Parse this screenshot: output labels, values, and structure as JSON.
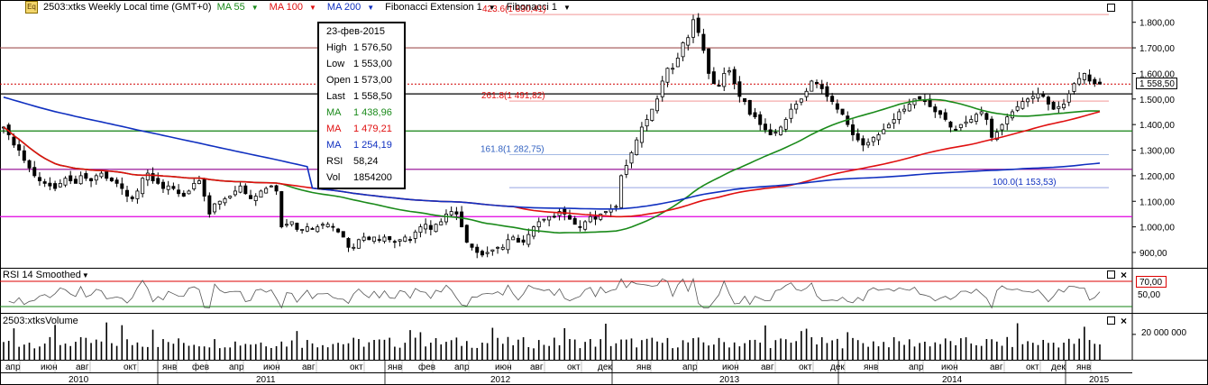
{
  "header": {
    "instrument": "2503:xtks Weekly Local time (GMT+0)",
    "ma55": "MA 55",
    "ma100": "MA 100",
    "ma200": "MA 200",
    "fib_ext": "Fibonacci Extension 1",
    "fib": "Fibonacci 1",
    "colors": {
      "ma55": "#1a8a1a",
      "ma100": "#e01010",
      "ma200": "#1030c0"
    }
  },
  "tooltip": {
    "date": "23-фев-2015",
    "rows": [
      {
        "label": "High",
        "value": "1 576,50",
        "color": "#000000"
      },
      {
        "label": "Low",
        "value": "1 553,00",
        "color": "#000000"
      },
      {
        "label": "Open",
        "value": "1 573,00",
        "color": "#000000"
      },
      {
        "label": "Last",
        "value": "1 558,50",
        "color": "#000000"
      },
      {
        "label": "MA",
        "value": "1 438,96",
        "color": "#1a8a1a"
      },
      {
        "label": "MA",
        "value": "1 479,21",
        "color": "#e01010"
      },
      {
        "label": "MA",
        "value": "1 254,19",
        "color": "#1030c0"
      },
      {
        "label": "RSI",
        "value": "58,24",
        "color": "#000000"
      },
      {
        "label": "Vol",
        "value": "1854200",
        "color": "#000000"
      }
    ]
  },
  "panels": {
    "rsi_title": "RSI 14 Smoothed",
    "rsi_level": "70,00",
    "rsi_level2": "50,00",
    "vol_title": "2503:xtksVolume",
    "vol_label": "20 000 000"
  },
  "last_price_tag": "1 558,50",
  "fib_labels": [
    {
      "text": "423.6(1 830,41)",
      "price": 1830.41,
      "color": "#e01010"
    },
    {
      "text": "261.8(1 491,82)",
      "price": 1491.82,
      "color": "#e01010"
    },
    {
      "text": "161.8(1 282,75)",
      "price": 1282.75,
      "color": "#3060c0"
    },
    {
      "text": "100.0(1 153,53)",
      "price": 1153.53,
      "color": "#1030c0"
    }
  ],
  "chart_data": {
    "type": "candlestick",
    "price_ylim": [
      840,
      1880
    ],
    "price_ticks": [
      "1.800,00",
      "1.700,00",
      "1.600,00",
      "1.500,00",
      "1.400,00",
      "1.300,00",
      "1.200,00",
      "1.100,00",
      "1.000,00",
      "900,00"
    ],
    "price_tick_values": [
      1800,
      1700,
      1600,
      1500,
      1400,
      1300,
      1200,
      1100,
      1000,
      900
    ],
    "horizontal_lines": [
      {
        "price": 1700,
        "color": "#a05050"
      },
      {
        "price": 1520,
        "color": "#000000"
      },
      {
        "price": 1375,
        "color": "#108010"
      },
      {
        "price": 1225,
        "color": "#900090"
      },
      {
        "price": 1040,
        "color": "#e000e0"
      },
      {
        "price": 1558.5,
        "color": "#d00000",
        "dashed": true
      }
    ],
    "month_labels": [
      "апр",
      "июн",
      "авг",
      "окт",
      "янв",
      "фев",
      "апр",
      "июн",
      "авг",
      "окт",
      "янв",
      "фев",
      "апр",
      "июн",
      "авг",
      "окт",
      "дек",
      "янв",
      "апр",
      "июн",
      "авг",
      "окт",
      "дек",
      "янв",
      "апр",
      "июн",
      "авг",
      "окт",
      "дек",
      "янв"
    ],
    "year_labels": [
      "2010",
      "2011",
      "2012",
      "2013",
      "2014",
      "2015"
    ],
    "weekly_closes": [
      1390,
      1360,
      1320,
      1300,
      1260,
      1230,
      1200,
      1180,
      1170,
      1160,
      1150,
      1170,
      1190,
      1180,
      1170,
      1200,
      1190,
      1180,
      1200,
      1210,
      1190,
      1180,
      1170,
      1150,
      1120,
      1110,
      1140,
      1190,
      1210,
      1180,
      1170,
      1150,
      1160,
      1150,
      1130,
      1120,
      1140,
      1170,
      1180,
      1120,
      1050,
      1090,
      1100,
      1110,
      1120,
      1140,
      1160,
      1130,
      1110,
      1120,
      1140,
      1150,
      1160,
      1140,
      1000,
      1010,
      1020,
      990,
      990,
      1000,
      990,
      1000,
      1010,
      1010,
      1000,
      980,
      960,
      920,
      920,
      950,
      960,
      950,
      960,
      950,
      960,
      950,
      940,
      950,
      960,
      950,
      980,
      1000,
      1010,
      990,
      1010,
      1020,
      1050,
      1060,
      1050,
      1000,
      940,
      920,
      900,
      890,
      900,
      910,
      920,
      920,
      950,
      960,
      940,
      940,
      970,
      1000,
      1020,
      1030,
      1040,
      1040,
      1060,
      1050,
      1030,
      1010,
      1000,
      1020,
      1040,
      1030,
      1050,
      1060,
      1070,
      1080,
      1200,
      1240,
      1290,
      1340,
      1390,
      1420,
      1460,
      1500,
      1570,
      1620,
      1620,
      1660,
      1720,
      1740,
      1810,
      1760,
      1690,
      1600,
      1560,
      1550,
      1600,
      1610,
      1560,
      1510,
      1490,
      1440,
      1430,
      1400,
      1380,
      1360,
      1370,
      1390,
      1420,
      1460,
      1480,
      1500,
      1530,
      1570,
      1560,
      1540,
      1510,
      1490,
      1460,
      1440,
      1400,
      1360,
      1340,
      1320,
      1330,
      1350,
      1360,
      1380,
      1400,
      1420,
      1450,
      1460,
      1480,
      1500,
      1500,
      1490,
      1470,
      1450,
      1440,
      1420,
      1390,
      1380,
      1400,
      1410,
      1420,
      1440,
      1450,
      1420,
      1350,
      1370,
      1400,
      1430,
      1450,
      1470,
      1490,
      1500,
      1510,
      1520,
      1510,
      1480,
      1460,
      1470,
      1480,
      1520,
      1560,
      1580,
      1600,
      1570,
      1560,
      1558.5
    ],
    "ma55_values_desc": "MA 55 line",
    "rsi_levels": [
      70,
      50
    ],
    "volume_peak": 20000000
  }
}
